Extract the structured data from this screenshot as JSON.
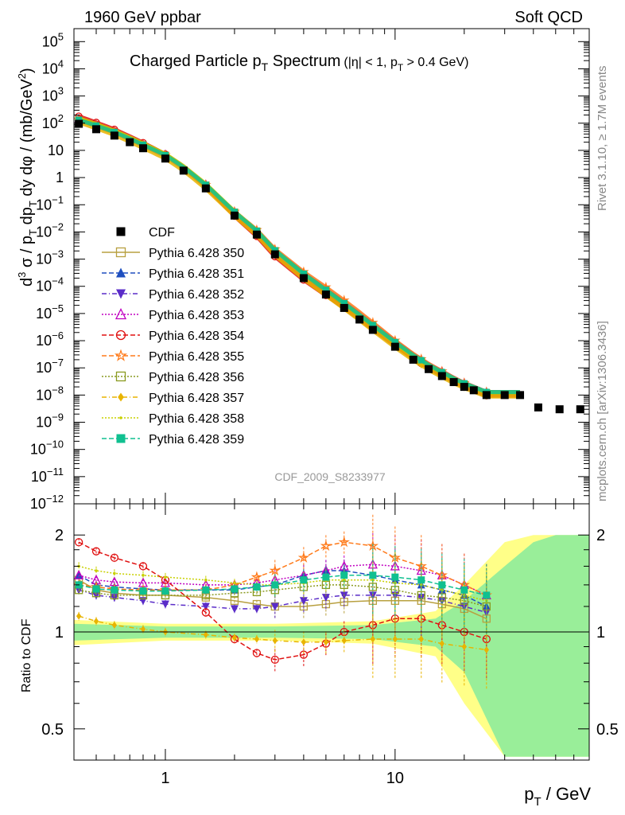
{
  "header": {
    "beam": "1960 GeV ppbar",
    "category": "Soft QCD"
  },
  "side_text": {
    "rivet": "Rivet 3.1.10, ≥ 1.7M events",
    "mcplots": "mcplots.cern.ch [arXiv:1306.3436]"
  },
  "chart_data": [
    {
      "type": "scatter",
      "title": "Charged Particle p_T Spectrum",
      "title_main": "Charged Particle p",
      "title_sub": "T",
      "title_tail": " Spectrum",
      "title_cuts": "(|η| < 1, p",
      "title_cuts_sub": "T",
      "title_cuts_tail": " > 0.4 GeV)",
      "watermark": "CDF_2009_S8233977",
      "ylabel": "d³σ / p_T dp_T dy dφ / (mb/GeV²)",
      "xscale": "log",
      "yscale": "log",
      "xlim": [
        0.4,
        70
      ],
      "ylim": [
        1e-12,
        300000.0
      ],
      "legend_position": "middle-left",
      "y_ticks": [
        {
          "v": 100000.0,
          "m": "10",
          "e": "5"
        },
        {
          "v": 10000.0,
          "m": "10",
          "e": "4"
        },
        {
          "v": 1000.0,
          "m": "10",
          "e": "3"
        },
        {
          "v": 100.0,
          "m": "10",
          "e": "2"
        },
        {
          "v": 10,
          "m": "10",
          "e": ""
        },
        {
          "v": 1,
          "m": "1",
          "e": ""
        },
        {
          "v": 0.1,
          "m": "10",
          "e": "−1"
        },
        {
          "v": 0.01,
          "m": "10",
          "e": "−2"
        },
        {
          "v": 0.001,
          "m": "10",
          "e": "−3"
        },
        {
          "v": 0.0001,
          "m": "10",
          "e": "−4"
        },
        {
          "v": 1e-05,
          "m": "10",
          "e": "−5"
        },
        {
          "v": 1e-06,
          "m": "10",
          "e": "−6"
        },
        {
          "v": 1e-07,
          "m": "10",
          "e": "−7"
        },
        {
          "v": 1e-08,
          "m": "10",
          "e": "−8"
        },
        {
          "v": 1e-09,
          "m": "10",
          "e": "−9"
        },
        {
          "v": 1e-10,
          "m": "10",
          "e": "−10"
        },
        {
          "v": 1e-11,
          "m": "10",
          "e": "−11"
        },
        {
          "v": 1e-12,
          "m": "10",
          "e": "−12"
        }
      ],
      "series": [
        {
          "name": "CDF",
          "color": "#000000",
          "marker": "square-filled",
          "dash": "none"
        },
        {
          "name": "Pythia 6.428 350",
          "color": "#b8a040",
          "marker": "square-open",
          "dash": "solid"
        },
        {
          "name": "Pythia 6.428 351",
          "color": "#1f4fbf",
          "marker": "triangle-up-filled",
          "dash": "dashed"
        },
        {
          "name": "Pythia 6.428 352",
          "color": "#5a2cc8",
          "marker": "triangle-down-filled",
          "dash": "dashdot"
        },
        {
          "name": "Pythia 6.428 353",
          "color": "#c000c0",
          "marker": "triangle-up-open",
          "dash": "dotted"
        },
        {
          "name": "Pythia 6.428 354",
          "color": "#e01010",
          "marker": "circle-open",
          "dash": "dashed"
        },
        {
          "name": "Pythia 6.428 355",
          "color": "#ff7a1a",
          "marker": "star-open",
          "dash": "dashed"
        },
        {
          "name": "Pythia 6.428 356",
          "color": "#8a9a20",
          "marker": "square-open",
          "dash": "dotted"
        },
        {
          "name": "Pythia 6.428 357",
          "color": "#e8b400",
          "marker": "diamond-filled",
          "dash": "dashdot"
        },
        {
          "name": "Pythia 6.428 358",
          "color": "#c8d000",
          "marker": "dot",
          "dash": "dotted"
        },
        {
          "name": "Pythia 6.428 359",
          "color": "#10c090",
          "marker": "square-filled",
          "dash": "dashed"
        }
      ],
      "cdf_points": [
        {
          "x": 0.42,
          "y": 95
        },
        {
          "x": 0.5,
          "y": 60
        },
        {
          "x": 0.6,
          "y": 35
        },
        {
          "x": 0.7,
          "y": 20
        },
        {
          "x": 0.8,
          "y": 12
        },
        {
          "x": 1.0,
          "y": 5
        },
        {
          "x": 1.2,
          "y": 1.8
        },
        {
          "x": 1.5,
          "y": 0.4
        },
        {
          "x": 2.0,
          "y": 0.04
        },
        {
          "x": 2.5,
          "y": 0.008
        },
        {
          "x": 3.0,
          "y": 0.0015
        },
        {
          "x": 4.0,
          "y": 0.0002
        },
        {
          "x": 5.0,
          "y": 5e-05
        },
        {
          "x": 6.0,
          "y": 1.6e-05
        },
        {
          "x": 7.0,
          "y": 6e-06
        },
        {
          "x": 8.0,
          "y": 2.5e-06
        },
        {
          "x": 10.0,
          "y": 6e-07
        },
        {
          "x": 12.0,
          "y": 2e-07
        },
        {
          "x": 14.0,
          "y": 9e-08
        },
        {
          "x": 16.0,
          "y": 5e-08
        },
        {
          "x": 18.0,
          "y": 3e-08
        },
        {
          "x": 20.0,
          "y": 2e-08
        },
        {
          "x": 22.0,
          "y": 1.5e-08
        },
        {
          "x": 25.0,
          "y": 1e-08
        },
        {
          "x": 30.0,
          "y": 1e-08
        },
        {
          "x": 35.0,
          "y": 1e-08
        },
        {
          "x": 42.0,
          "y": 3.5e-09
        },
        {
          "x": 52.0,
          "y": 3e-09
        },
        {
          "x": 64.0,
          "y": 3e-09
        }
      ]
    },
    {
      "type": "line",
      "ylabel": "Ratio to CDF",
      "xlabel": "p_T / GeV",
      "xlabel_main": "p",
      "xlabel_sub": "T",
      "xlabel_tail": " / GeV",
      "xscale": "log",
      "yscale": "log",
      "xlim": [
        0.4,
        70
      ],
      "ylim": [
        0.4,
        2.5
      ],
      "reference_line": 1,
      "x_ticks": [
        {
          "v": 1,
          "label": "1"
        },
        {
          "v": 10,
          "label": "10"
        }
      ],
      "y_ticks": [
        {
          "v": 0.5,
          "label": "0.5"
        },
        {
          "v": 1,
          "label": "1"
        },
        {
          "v": 2,
          "label": "2"
        }
      ],
      "uncertainty_band": {
        "color_inner": "#99ee99",
        "color_outer": "#ffff88",
        "x": [
          0.4,
          1,
          3,
          8,
          15,
          20,
          30,
          40,
          50,
          70
        ],
        "inner_half_width": [
          0.06,
          0.04,
          0.04,
          0.05,
          0.1,
          0.25,
          0.6,
          0.9,
          1.0,
          1.0
        ],
        "outer_half_width": [
          0.09,
          0.06,
          0.06,
          0.08,
          0.16,
          0.4,
          0.9,
          1.0,
          1.0,
          1.0
        ]
      },
      "x": [
        0.42,
        0.5,
        0.6,
        0.8,
        1.0,
        1.5,
        2.0,
        2.5,
        3.0,
        4.0,
        5.0,
        6.0,
        8.0,
        10.0,
        13.0,
        16.0,
        20.0,
        25.0
      ],
      "series": [
        {
          "name": "Pythia 6.428 350",
          "values": [
            1.45,
            1.35,
            1.32,
            1.3,
            1.3,
            1.28,
            1.25,
            1.22,
            1.2,
            1.2,
            1.22,
            1.24,
            1.25,
            1.25,
            1.25,
            1.22,
            1.18,
            1.1
          ]
        },
        {
          "name": "Pythia 6.428 351",
          "values": [
            1.5,
            1.4,
            1.38,
            1.36,
            1.35,
            1.35,
            1.35,
            1.38,
            1.4,
            1.5,
            1.55,
            1.55,
            1.5,
            1.45,
            1.4,
            1.35,
            1.3,
            1.2
          ]
        },
        {
          "name": "Pythia 6.428 352",
          "values": [
            1.35,
            1.3,
            1.28,
            1.25,
            1.22,
            1.2,
            1.18,
            1.18,
            1.2,
            1.25,
            1.28,
            1.3,
            1.3,
            1.3,
            1.28,
            1.25,
            1.2,
            1.15
          ]
        },
        {
          "name": "Pythia 6.428 353",
          "values": [
            1.5,
            1.45,
            1.43,
            1.42,
            1.42,
            1.4,
            1.4,
            1.42,
            1.45,
            1.5,
            1.55,
            1.6,
            1.62,
            1.6,
            1.55,
            1.5,
            1.4,
            1.3
          ]
        },
        {
          "name": "Pythia 6.428 354",
          "values": [
            1.9,
            1.78,
            1.7,
            1.6,
            1.45,
            1.15,
            0.95,
            0.86,
            0.82,
            0.85,
            0.92,
            1.0,
            1.05,
            1.1,
            1.1,
            1.05,
            1.0,
            0.95
          ]
        },
        {
          "name": "Pythia 6.428 355",
          "values": [
            1.4,
            1.38,
            1.36,
            1.35,
            1.35,
            1.35,
            1.4,
            1.48,
            1.55,
            1.7,
            1.85,
            1.9,
            1.85,
            1.7,
            1.6,
            1.5,
            1.4,
            1.3
          ]
        },
        {
          "name": "Pythia 6.428 356",
          "values": [
            1.35,
            1.32,
            1.3,
            1.3,
            1.3,
            1.3,
            1.32,
            1.33,
            1.35,
            1.38,
            1.4,
            1.4,
            1.38,
            1.35,
            1.3,
            1.28,
            1.25,
            1.2
          ]
        },
        {
          "name": "Pythia 6.428 357",
          "values": [
            1.12,
            1.08,
            1.05,
            1.02,
            1.0,
            0.98,
            0.96,
            0.95,
            0.94,
            0.93,
            0.93,
            0.94,
            0.95,
            0.95,
            0.95,
            0.92,
            0.9,
            0.88
          ]
        },
        {
          "name": "Pythia 6.428 358",
          "values": [
            1.6,
            1.55,
            1.52,
            1.5,
            1.48,
            1.45,
            1.42,
            1.4,
            1.4,
            1.42,
            1.45,
            1.45,
            1.45,
            1.42,
            1.4,
            1.35,
            1.3,
            1.25
          ]
        },
        {
          "name": "Pythia 6.428 359",
          "values": [
            1.4,
            1.36,
            1.35,
            1.34,
            1.34,
            1.35,
            1.36,
            1.38,
            1.4,
            1.45,
            1.48,
            1.5,
            1.5,
            1.48,
            1.45,
            1.4,
            1.35,
            1.3
          ]
        }
      ]
    }
  ]
}
